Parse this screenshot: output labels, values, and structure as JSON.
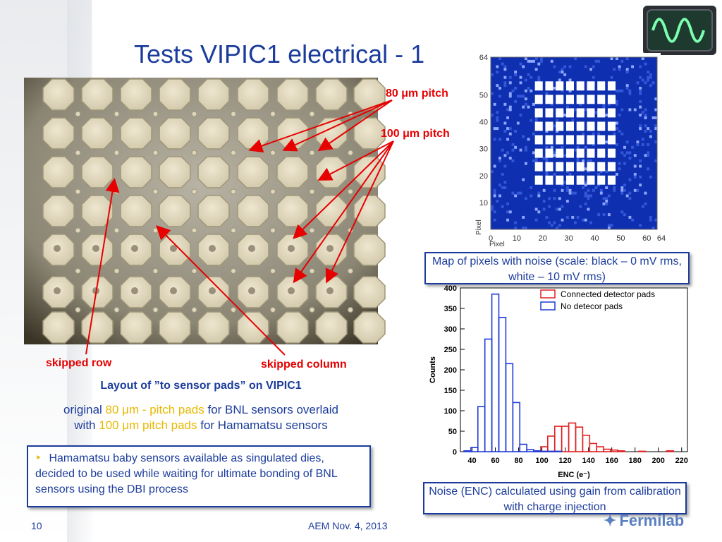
{
  "title": "Tests VIPIC1 electrical - 1",
  "photo_annotations": {
    "pitch80": "80 μm pitch",
    "pitch100": "100 μm pitch",
    "skipped_row": "skipped row",
    "skipped_column": "skipped column"
  },
  "layout_caption": {
    "heading": "Layout of ”to sensor pads” on VIPIC1",
    "line1_a": "original ",
    "line1_b": "80 μm - pitch pads",
    "line1_c": " for BNL sensors overlaid",
    "line2_a": "with ",
    "line2_b": "100 μm pitch pads",
    "line2_c": " for Hamamatsu sensors"
  },
  "bullet_box": {
    "bullet": "‣",
    "text": "Hamamatsu baby sensors available as singulated dies, decided to be used while waiting for ultimate bonding of BNL sensors using the DBI process"
  },
  "noise_map": {
    "caption": "Map of pixels with noise (scale: black – 0 mV rms, white – 10 mV rms)",
    "axis_label": "Pixel",
    "x_ticks": [
      "0",
      "10",
      "20",
      "30",
      "40",
      "50",
      "60",
      "64"
    ],
    "y_ticks": [
      "10",
      "20",
      "30",
      "40",
      "50",
      "64"
    ]
  },
  "histogram_caption": "Noise (ENC) calculated using gain from calibration with charge injection",
  "chart_data": {
    "type": "histogram",
    "xlabel": "ENC (e⁻)",
    "ylabel": "Counts",
    "xlim": [
      30,
      225
    ],
    "ylim": [
      0,
      400
    ],
    "x_ticks": [
      40,
      60,
      80,
      100,
      120,
      140,
      160,
      180,
      200,
      220
    ],
    "y_ticks": [
      0,
      50,
      100,
      150,
      200,
      250,
      300,
      350,
      400
    ],
    "bin_width": 6,
    "series": [
      {
        "name": "Connected detector pads",
        "color": "#e02020",
        "bins": [
          [
            96,
            2
          ],
          [
            102,
            12
          ],
          [
            108,
            38
          ],
          [
            114,
            62
          ],
          [
            120,
            62
          ],
          [
            126,
            70
          ],
          [
            132,
            60
          ],
          [
            138,
            40
          ],
          [
            144,
            20
          ],
          [
            150,
            12
          ],
          [
            156,
            6
          ],
          [
            162,
            4
          ],
          [
            168,
            2
          ],
          [
            186,
            1
          ],
          [
            210,
            2
          ]
        ]
      },
      {
        "name": "No detecor pads",
        "color": "#1f3bd6",
        "bins": [
          [
            36,
            2
          ],
          [
            42,
            10
          ],
          [
            48,
            110
          ],
          [
            54,
            275
          ],
          [
            60,
            385
          ],
          [
            66,
            328
          ],
          [
            72,
            215
          ],
          [
            78,
            120
          ],
          [
            84,
            18
          ],
          [
            90,
            5
          ],
          [
            96,
            2
          ],
          [
            102,
            1
          ],
          [
            108,
            1
          ],
          [
            114,
            1
          ]
        ]
      }
    ]
  },
  "footer": {
    "page_number": "10",
    "date": "AEM Nov. 4, 2013",
    "logo_text": "Fermilab",
    "logo_mark": "✦"
  }
}
